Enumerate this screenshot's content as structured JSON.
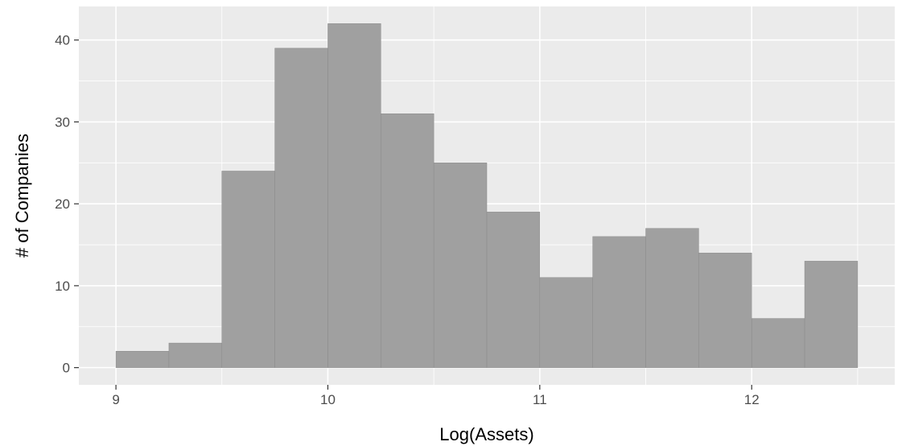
{
  "chart_data": {
    "type": "bar",
    "subtype": "histogram",
    "title": "",
    "xlabel": "Log(Assets)",
    "ylabel": "# of Companies",
    "bin_width": 0.25,
    "bins": [
      {
        "x0": 9.0,
        "x1": 9.25,
        "count": 2
      },
      {
        "x0": 9.25,
        "x1": 9.5,
        "count": 3
      },
      {
        "x0": 9.5,
        "x1": 9.75,
        "count": 24
      },
      {
        "x0": 9.75,
        "x1": 10.0,
        "count": 39
      },
      {
        "x0": 10.0,
        "x1": 10.25,
        "count": 42
      },
      {
        "x0": 10.25,
        "x1": 10.5,
        "count": 31
      },
      {
        "x0": 10.5,
        "x1": 10.75,
        "count": 25
      },
      {
        "x0": 10.75,
        "x1": 11.0,
        "count": 19
      },
      {
        "x0": 11.0,
        "x1": 11.25,
        "count": 11
      },
      {
        "x0": 11.25,
        "x1": 11.5,
        "count": 16
      },
      {
        "x0": 11.5,
        "x1": 11.75,
        "count": 17
      },
      {
        "x0": 11.75,
        "x1": 12.0,
        "count": 14
      },
      {
        "x0": 12.0,
        "x1": 12.25,
        "count": 6
      },
      {
        "x0": 12.25,
        "x1": 12.5,
        "count": 13
      }
    ],
    "xlim": [
      8.825,
      12.675
    ],
    "ylim": [
      -2.1,
      44.1
    ],
    "x_ticks": [
      9,
      10,
      11,
      12
    ],
    "y_ticks": [
      0,
      10,
      20,
      30,
      40
    ],
    "grid": true,
    "legend": "none",
    "colors": {
      "panel_background": "#ebebeb",
      "grid_major": "#ffffff",
      "bar_fill": "#a0a0a0",
      "bar_outline": "#8a8a8a",
      "tick_text": "#4d4d4d",
      "axis_title": "#000000"
    }
  }
}
